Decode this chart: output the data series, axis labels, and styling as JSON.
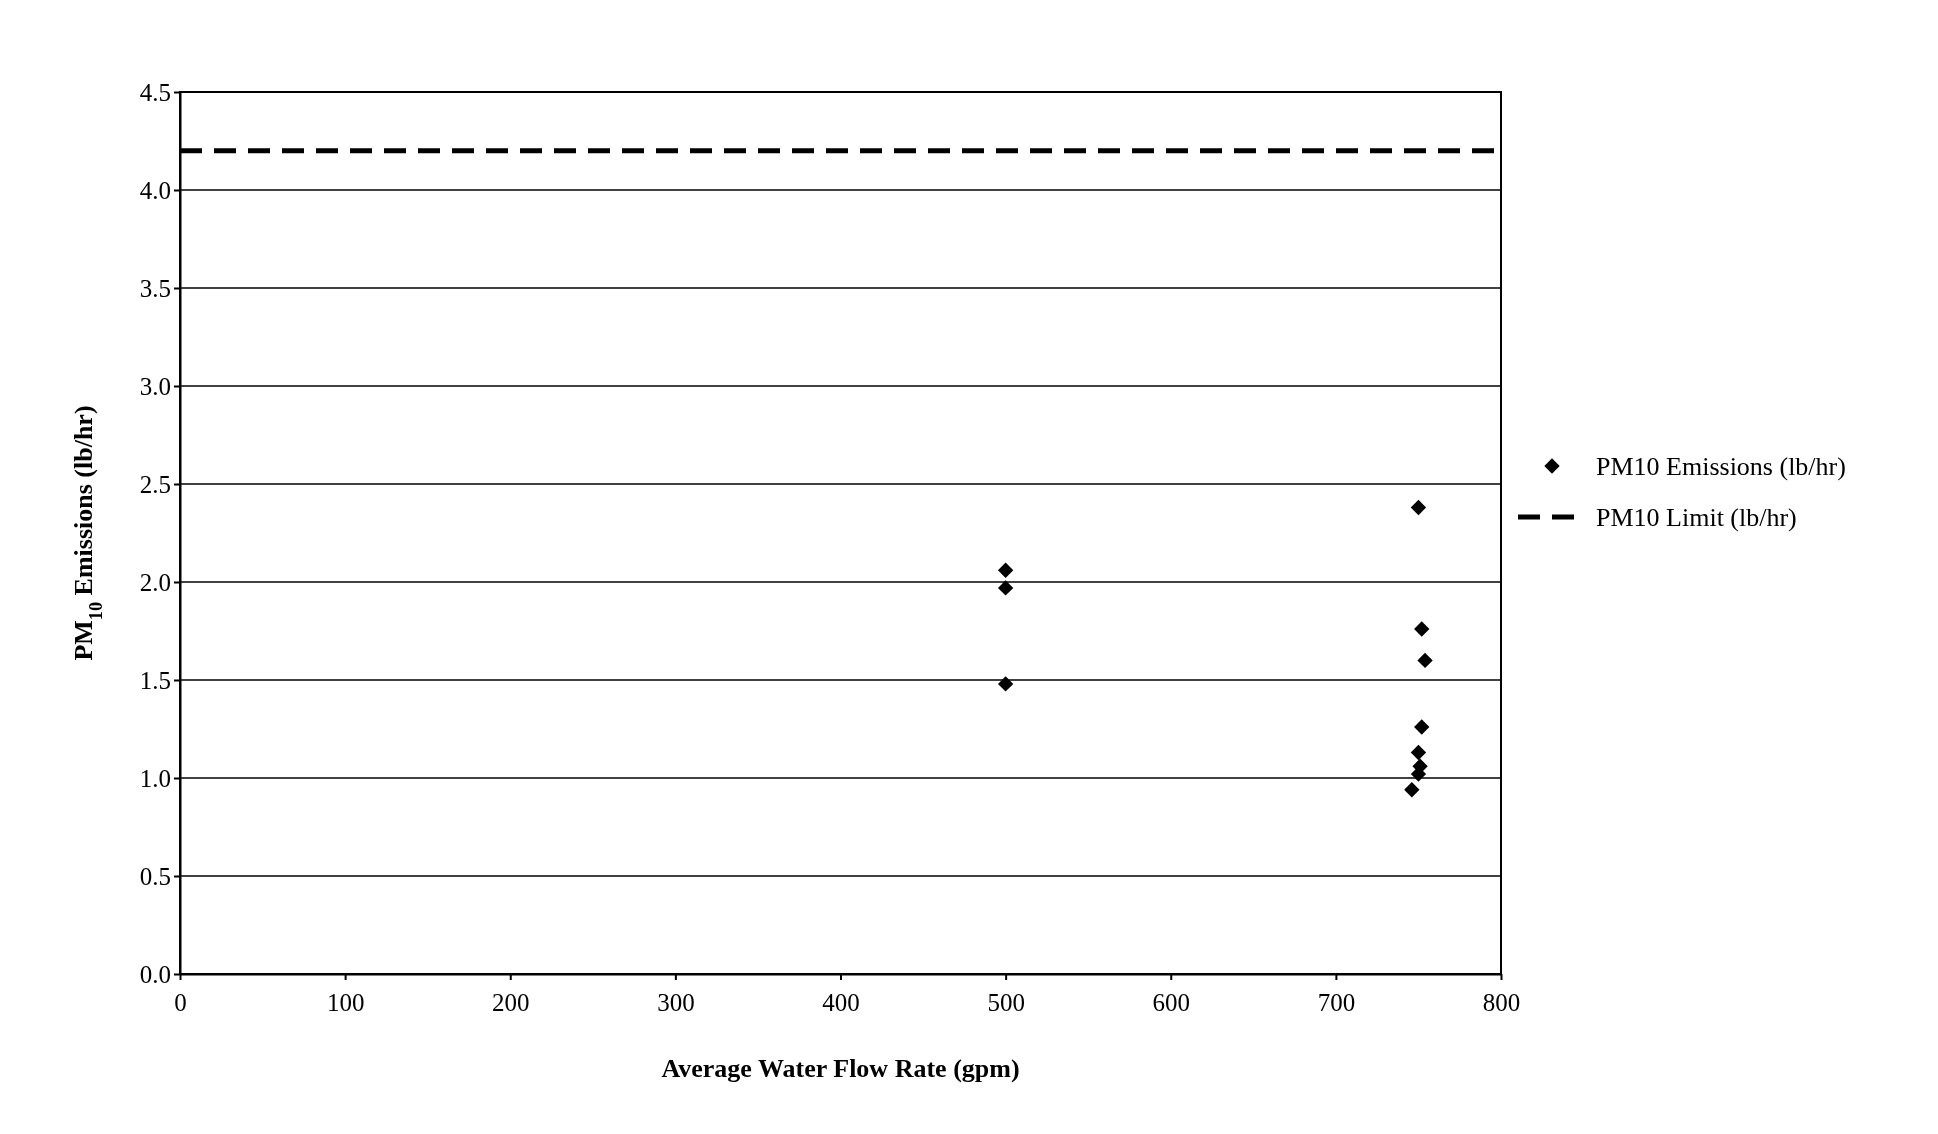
{
  "chart_data": {
    "type": "scatter",
    "xlabel": "Average Water Flow Rate (gpm)",
    "ylabel": "PM$_{10}$ Emissions (lb/hr)",
    "xlim": [
      0,
      800
    ],
    "xticks": [
      0,
      100,
      200,
      300,
      400,
      500,
      600,
      700,
      800
    ],
    "ylim": [
      0,
      4.5
    ],
    "yticks": [
      {
        "value": 0,
        "label": "0.0"
      },
      {
        "value": 0.5,
        "label": "0.5"
      },
      {
        "value": 1,
        "label": "1.0"
      },
      {
        "value": 1.5,
        "label": "1.5"
      },
      {
        "value": 2,
        "label": "2.0"
      },
      {
        "value": 2.5,
        "label": "2.5"
      },
      {
        "value": 3,
        "label": "3.0"
      },
      {
        "value": 3.5,
        "label": "3.5"
      },
      {
        "value": 4,
        "label": "4.0"
      },
      {
        "value": 4.5,
        "label": "4.5"
      }
    ],
    "grid": "y",
    "legend": "right",
    "marker": "diamond",
    "series": [
      {
        "name": "PM10 Emissions (lb/hr)",
        "color": "#000000",
        "x": [
          500,
          500,
          500,
          750,
          752,
          754,
          752,
          750,
          751,
          750,
          746
        ],
        "values": [
          2.06,
          1.97,
          1.48,
          2.38,
          1.76,
          1.6,
          1.26,
          1.13,
          1.06,
          1.02,
          0.94
        ]
      }
    ],
    "ref_lines": [
      {
        "axis": "y",
        "value": 4.2,
        "label": "PM10 Limit (lb/hr)",
        "color": "#000000",
        "line_style": "dashed"
      }
    ]
  }
}
